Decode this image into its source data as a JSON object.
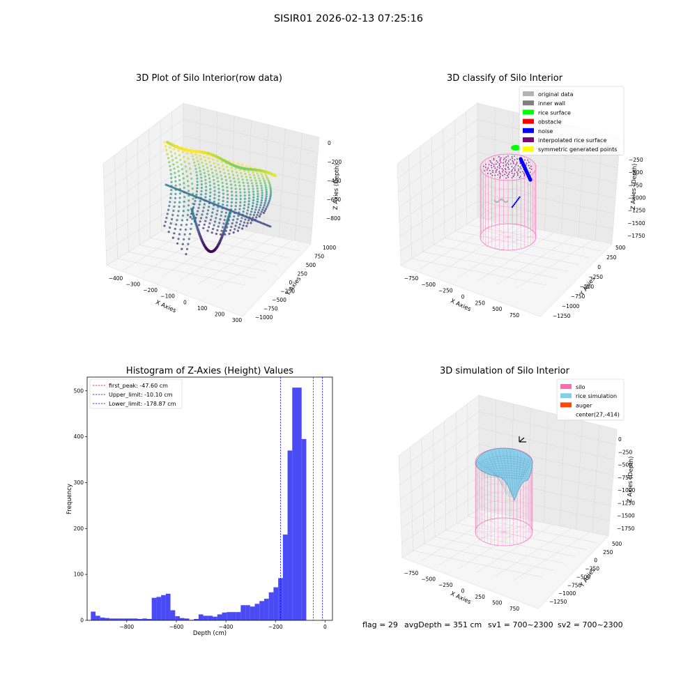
{
  "figure": {
    "title": "SISIR01 2026-02-13 07:25:16",
    "footer": {
      "flag": "flag = 29",
      "avg_depth": "avgDepth = 351 cm",
      "sv1": "sv1 = 700~2300",
      "sv2": "sv2 = 700~2300"
    }
  },
  "colors": {
    "viridis": [
      "#440154",
      "#3b528b",
      "#21918c",
      "#5ec962",
      "#fde725"
    ],
    "hist_bar": "#4b4bf5",
    "silo": "#ff69b4",
    "rice": "#87ceeb",
    "auger": "#ff4500"
  },
  "chart_data": [
    {
      "type": "scatter",
      "subtype": "3d",
      "title": "3D Plot of Silo Interior(row data)",
      "xlabel": "X Axies",
      "ylabel": "Y Axies",
      "zlabel": "Z Axies (Depth)",
      "x_ticks": [
        "−400",
        "−300",
        "−200",
        "−100",
        "0",
        "100",
        "200",
        "300"
      ],
      "y_ticks": [
        "−1000",
        "−750",
        "−500",
        "−250",
        "0",
        "250",
        "500",
        "750",
        "1000"
      ],
      "z_ticks": [
        "−800",
        "−600",
        "−400",
        "−200",
        "0"
      ],
      "xlim": [
        -450,
        300
      ],
      "ylim": [
        -1000,
        1000
      ],
      "zlim": [
        -950,
        0
      ],
      "colormap": "viridis"
    },
    {
      "type": "scatter",
      "subtype": "3d",
      "title": "3D classify of Silo Interior",
      "xlabel": "X Axies",
      "ylabel": "Y Axies",
      "zlabel": "Z Axies (Depth)",
      "x_ticks": [
        "−750",
        "−500",
        "−250",
        "0",
        "250",
        "500",
        "750"
      ],
      "y_ticks": [
        "−1250",
        "−1000",
        "−750",
        "−500",
        "−250",
        "0",
        "250",
        "500"
      ],
      "z_ticks": [
        "−1750",
        "−1500",
        "−1250",
        "−1000",
        "−750",
        "−500",
        "−250"
      ],
      "legend_position": "top-right",
      "legend": [
        {
          "name": "original data",
          "color": "#b3b3b3"
        },
        {
          "name": "inner wall",
          "color": "#808080"
        },
        {
          "name": "rice surface",
          "color": "#00ff00"
        },
        {
          "name": "obstacle",
          "color": "#ff0000"
        },
        {
          "name": "noise",
          "color": "#0000ff"
        },
        {
          "name": "interpolated rice surface",
          "color": "#800080"
        },
        {
          "name": "symmetric generated points",
          "color": "#ffff00"
        }
      ]
    },
    {
      "type": "bar",
      "subtype": "histogram",
      "title": "Histogram of Z-Axies (Height) Values",
      "xlabel": "Depth (cm)",
      "ylabel": "Frequency",
      "xlim": [
        -960,
        30
      ],
      "ylim": [
        0,
        530
      ],
      "x_ticks": [
        -800,
        -600,
        -400,
        -200,
        0
      ],
      "x_tick_labels": [
        "−800",
        "−600",
        "−400",
        "−200",
        "0"
      ],
      "y_ticks": [
        0,
        100,
        200,
        300,
        400,
        500
      ],
      "bin_start": -945,
      "bin_width": 18.9,
      "values": [
        19,
        10,
        6,
        5,
        4,
        4,
        4,
        4,
        4,
        4,
        3,
        4,
        3,
        49,
        51,
        55,
        58,
        22,
        9,
        5,
        4,
        1,
        3,
        13,
        10,
        10,
        8,
        13,
        17,
        18,
        18,
        18,
        33,
        33,
        30,
        36,
        42,
        47,
        61,
        72,
        92,
        187,
        370,
        507,
        507,
        395
      ],
      "lines": [
        {
          "name": "first_peak: -47.60 cm",
          "value": -47.6,
          "color": "#ff0000"
        },
        {
          "name": "Upper_limit: -10.10 cm",
          "value": -10.1,
          "color": "#0000ff"
        },
        {
          "name": "Lower_limit: -178.87 cm",
          "value": -178.87,
          "color": "#0000ff"
        }
      ],
      "legend_position": "top-left"
    },
    {
      "type": "surface",
      "subtype": "3d",
      "title": "3D simulation of Silo Interior",
      "xlabel": "X Axies",
      "ylabel": "Y Axies",
      "zlabel": "Z Axies (Depth)",
      "x_ticks": [
        "−750",
        "−500",
        "−250",
        "0",
        "250",
        "500",
        "750"
      ],
      "y_ticks": [
        "−1250",
        "−1000",
        "−750",
        "−500",
        "−250",
        "0",
        "250",
        "500"
      ],
      "z_ticks": [
        "−1750",
        "−1500",
        "−1250",
        "−1000",
        "−750",
        "−500",
        "−250",
        "0"
      ],
      "legend_position": "top-right",
      "legend": [
        {
          "name": "silo",
          "color": "#ff69b4"
        },
        {
          "name": "rice simulation",
          "color": "#87ceeb"
        },
        {
          "name": "auger",
          "color": "#ff4500"
        },
        {
          "name": "center(27,-414)",
          "color": ""
        }
      ]
    }
  ]
}
